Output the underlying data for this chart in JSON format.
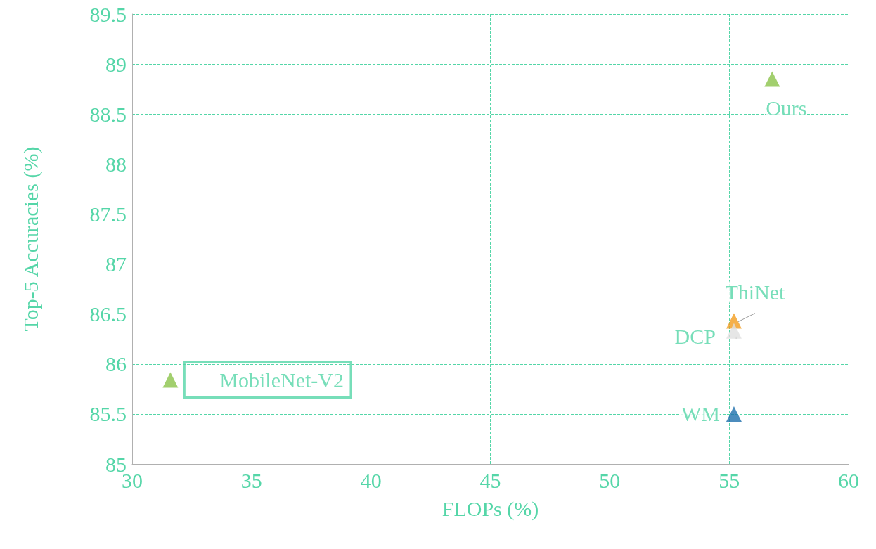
{
  "chart_data": {
    "type": "scatter",
    "xlabel": "FLOPs (%)",
    "ylabel": "Top-5 Accuracies (%)",
    "xlim": [
      30,
      60
    ],
    "xticks": [
      30,
      35,
      40,
      45,
      50,
      55,
      60
    ],
    "ylim": [
      85,
      89.5
    ],
    "yticks": [
      85,
      {
        "value": 85.5,
        "label": "85.5"
      },
      86,
      {
        "value": 86.5,
        "label": "86.5"
      },
      87,
      {
        "value": 87.5,
        "label": "87.5"
      },
      88,
      {
        "value": 88.5,
        "label": "88.5"
      },
      89,
      {
        "value": 89.5,
        "label": "89.5"
      }
    ],
    "grid": true,
    "legend": false,
    "marker": "triangle",
    "series": [
      {
        "name": "Ours",
        "color": "#8bc34a",
        "x": [
          56.8
        ],
        "values": [
          88.85
        ]
      },
      {
        "name": "ThiNet",
        "color": "#f39c1e",
        "x": [
          55.2
        ],
        "values": [
          86.43
        ]
      },
      {
        "name": "DCP",
        "color": "#e0e0e0",
        "x": [
          55.2
        ],
        "values": [
          86.33
        ]
      },
      {
        "name": "WM",
        "color": "#1f6fad",
        "x": [
          55.2
        ],
        "values": [
          85.5
        ]
      },
      {
        "name": "MobileNet-V2",
        "color": "#8bc34a",
        "x": [
          31.6
        ],
        "values": [
          85.84
        ]
      }
    ]
  }
}
